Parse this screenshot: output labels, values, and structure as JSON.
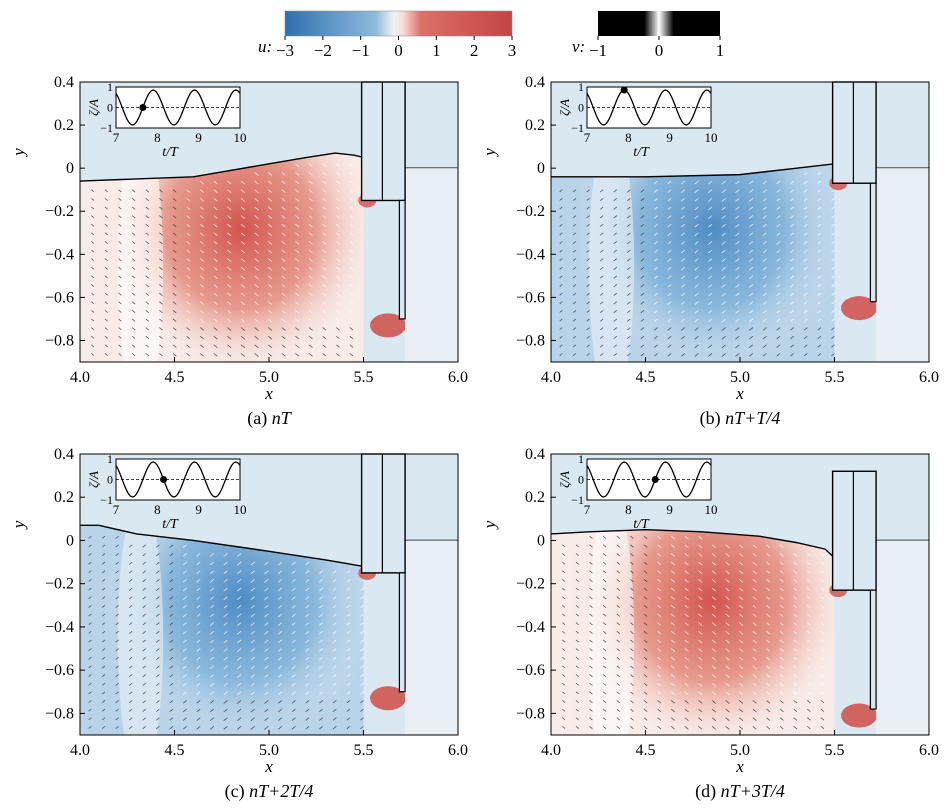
{
  "colorbars": [
    {
      "label": "u:",
      "ticks": [
        "−3",
        "−2",
        "−1",
        "0",
        "1",
        "2",
        "3"
      ],
      "colors": [
        "#3b78b5",
        "#fbfbfb",
        "#c9494a"
      ]
    },
    {
      "label": "v:",
      "ticks": [
        "−1",
        "0",
        "1"
      ],
      "colors": [
        "#000000",
        "#ffffff",
        "#000000"
      ]
    }
  ],
  "chart_data": [
    {
      "type": "heatmap",
      "panel_label": "(a) ",
      "phase": "nT",
      "title": "(a) nT",
      "xlabel": "x",
      "ylabel": "y",
      "xlim": [
        4.0,
        6.0
      ],
      "ylim": [
        -0.9,
        0.4
      ],
      "xticks": [
        "4.0",
        "4.5",
        "5.0",
        "5.5",
        "6.0"
      ],
      "yticks": [
        "0.4",
        "0.2",
        "0",
        "−0.2",
        "−0.4",
        "−0.6",
        "−0.8"
      ],
      "free_surface": {
        "x": [
          4.0,
          4.3,
          4.6,
          4.8,
          5.0,
          5.2,
          5.35,
          5.45,
          5.5
        ],
        "y": [
          -0.06,
          -0.05,
          -0.04,
          -0.01,
          0.02,
          0.05,
          0.07,
          0.06,
          0.05
        ]
      },
      "right_surface": {
        "x": [
          5.72,
          6.0
        ],
        "y": [
          0.0,
          0.0
        ]
      },
      "dominant_flow": "positive",
      "structure": {
        "upper": {
          "x": [
            5.49,
            5.72
          ],
          "y": [
            0.4,
            -0.15
          ]
        },
        "lower_wall": {
          "x": [
            5.69,
            5.72
          ],
          "y": [
            -0.15,
            -0.7
          ]
        }
      },
      "inset": {
        "ylabel": "ζ/A",
        "xlabel": "t/T",
        "xlim": [
          7,
          10
        ],
        "ylim": [
          -1,
          1
        ],
        "xticks": [
          "7",
          "8",
          "9",
          "10"
        ],
        "yticks": [
          "1",
          "0",
          "−1"
        ],
        "marker_t": 7.65
      }
    },
    {
      "type": "heatmap",
      "panel_label": "(b) ",
      "phase": "nT+T/4",
      "title": "(b) nT+T/4",
      "xlabel": "x",
      "ylabel": "y",
      "xlim": [
        4.0,
        6.0
      ],
      "ylim": [
        -0.9,
        0.4
      ],
      "xticks": [
        "4.0",
        "4.5",
        "5.0",
        "5.5",
        "6.0"
      ],
      "yticks": [
        "0.4",
        "0.2",
        "0",
        "−0.2",
        "−0.4",
        "−0.6",
        "−0.8"
      ],
      "free_surface": {
        "x": [
          4.0,
          4.5,
          5.0,
          5.3,
          5.5
        ],
        "y": [
          -0.04,
          -0.04,
          -0.03,
          -0.0,
          0.02
        ]
      },
      "right_surface": {
        "x": [
          5.72,
          6.0
        ],
        "y": [
          0.0,
          0.0
        ]
      },
      "dominant_flow": "negative",
      "structure": {
        "upper": {
          "x": [
            5.49,
            5.72
          ],
          "y": [
            0.4,
            -0.07
          ]
        },
        "lower_wall": {
          "x": [
            5.69,
            5.72
          ],
          "y": [
            -0.07,
            -0.62
          ]
        }
      },
      "inset": {
        "ylabel": "ζ/A",
        "xlabel": "t/T",
        "xlim": [
          7,
          10
        ],
        "ylim": [
          -1,
          1
        ],
        "xticks": [
          "7",
          "8",
          "9",
          "10"
        ],
        "yticks": [
          "1",
          "0",
          "−1"
        ],
        "marker_t": 7.9
      }
    },
    {
      "type": "heatmap",
      "panel_label": "(c) ",
      "phase": "nT+2T/4",
      "title": "(c) nT+2T/4",
      "xlabel": "x",
      "ylabel": "y",
      "xlim": [
        4.0,
        6.0
      ],
      "ylim": [
        -0.9,
        0.4
      ],
      "xticks": [
        "4.0",
        "4.5",
        "5.0",
        "5.5",
        "6.0"
      ],
      "yticks": [
        "0.4",
        "0.2",
        "0",
        "−0.2",
        "−0.4",
        "−0.6",
        "−0.8"
      ],
      "free_surface": {
        "x": [
          4.0,
          4.1,
          4.3,
          4.6,
          5.0,
          5.3,
          5.5
        ],
        "y": [
          0.07,
          0.07,
          0.03,
          0.0,
          -0.05,
          -0.09,
          -0.12
        ]
      },
      "right_surface": {
        "x": [
          5.72,
          6.0
        ],
        "y": [
          0.0,
          0.0
        ]
      },
      "dominant_flow": "negative",
      "structure": {
        "upper": {
          "x": [
            5.49,
            5.72
          ],
          "y": [
            0.4,
            -0.15
          ]
        },
        "lower_wall": {
          "x": [
            5.69,
            5.72
          ],
          "y": [
            -0.15,
            -0.7
          ]
        }
      },
      "inset": {
        "ylabel": "ζ/A",
        "xlabel": "t/T",
        "xlim": [
          7,
          10
        ],
        "ylim": [
          -1,
          1
        ],
        "xticks": [
          "7",
          "8",
          "9",
          "10"
        ],
        "yticks": [
          "1",
          "0",
          "−1"
        ],
        "marker_t": 8.15
      }
    },
    {
      "type": "heatmap",
      "panel_label": "(d) ",
      "phase": "nT+3T/4",
      "title": "(d) nT+3T/4",
      "xlabel": "x",
      "ylabel": "y",
      "xlim": [
        4.0,
        6.0
      ],
      "ylim": [
        -0.9,
        0.4
      ],
      "xticks": [
        "4.0",
        "4.5",
        "5.0",
        "5.5",
        "6.0"
      ],
      "yticks": [
        "0.4",
        "0.2",
        "0",
        "−0.2",
        "−0.4",
        "−0.6",
        "−0.8"
      ],
      "free_surface": {
        "x": [
          4.0,
          4.2,
          4.5,
          4.8,
          5.1,
          5.3,
          5.45,
          5.5
        ],
        "y": [
          0.03,
          0.04,
          0.05,
          0.04,
          0.02,
          -0.01,
          -0.04,
          -0.08
        ]
      },
      "right_surface": {
        "x": [
          5.72,
          6.0
        ],
        "y": [
          0.0,
          0.0
        ]
      },
      "dominant_flow": "positive",
      "structure": {
        "upper": {
          "x": [
            5.49,
            5.72
          ],
          "y": [
            0.32,
            -0.23
          ]
        },
        "lower_wall": {
          "x": [
            5.69,
            5.72
          ],
          "y": [
            -0.23,
            -0.78
          ]
        }
      },
      "inset": {
        "ylabel": "ζ/A",
        "xlabel": "t/T",
        "xlim": [
          7,
          10
        ],
        "ylim": [
          -1,
          1
        ],
        "xticks": [
          "7",
          "8",
          "9",
          "10"
        ],
        "yticks": [
          "1",
          "0",
          "−1"
        ],
        "marker_t": 8.65
      }
    }
  ]
}
